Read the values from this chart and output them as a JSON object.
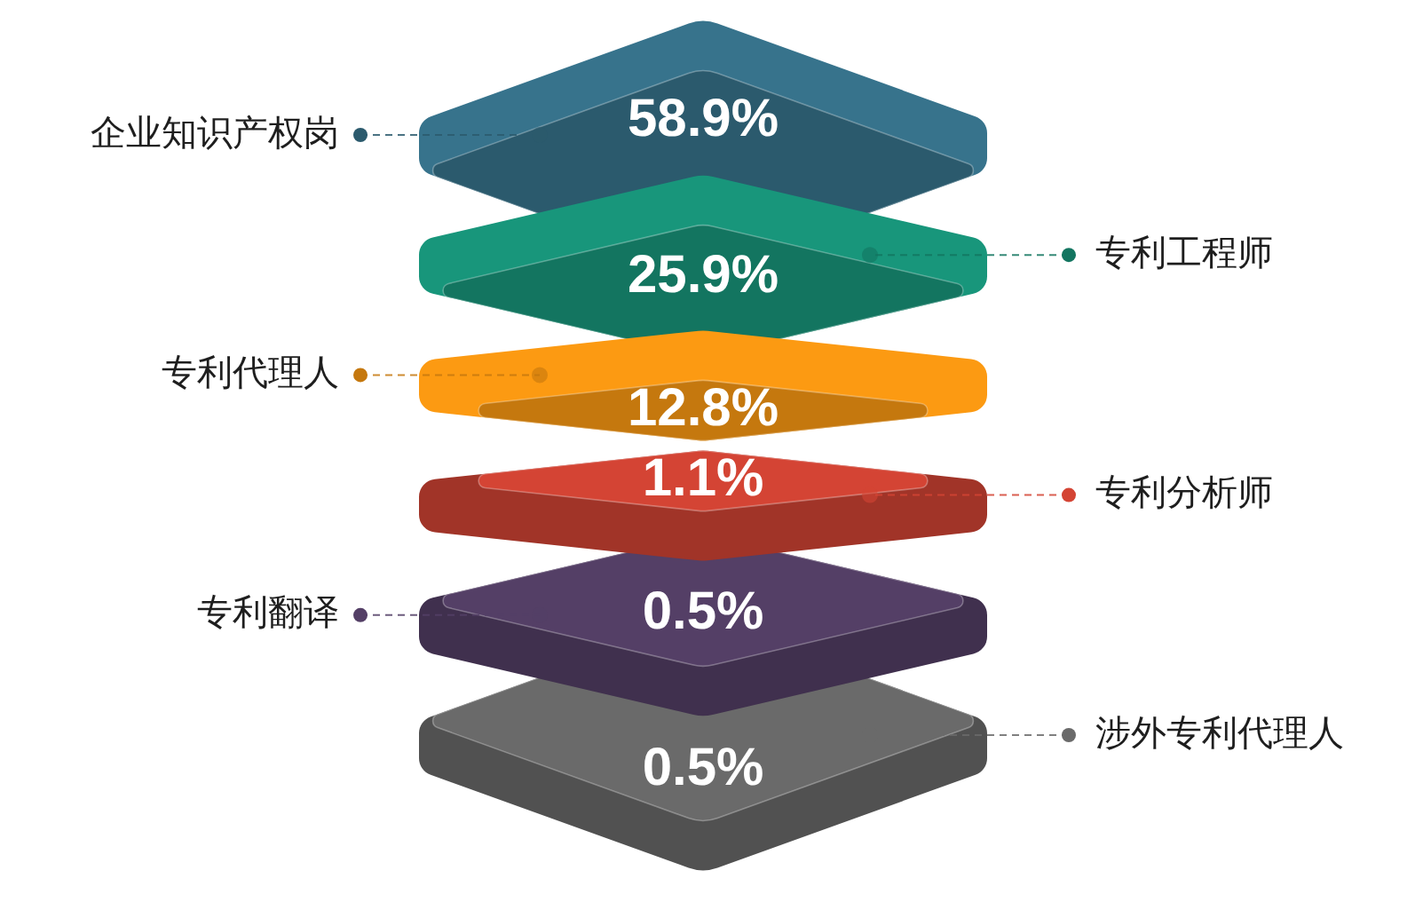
{
  "chart_data": {
    "type": "other",
    "categories": [
      "企业知识产权岗",
      "专利工程师",
      "专利代理人",
      "专利分析师",
      "专利翻译",
      "涉外专利代理人"
    ],
    "values": [
      58.9,
      25.9,
      12.8,
      1.1,
      0.5,
      0.5
    ],
    "value_labels": [
      "58.9%",
      "25.9%",
      "12.8%",
      "1.1%",
      "0.5%",
      "0.5%"
    ],
    "colors": [
      "#2b5a6d",
      "#137560",
      "#c5780e",
      "#d44434",
      "#543f66",
      "#6a6a6a"
    ]
  }
}
